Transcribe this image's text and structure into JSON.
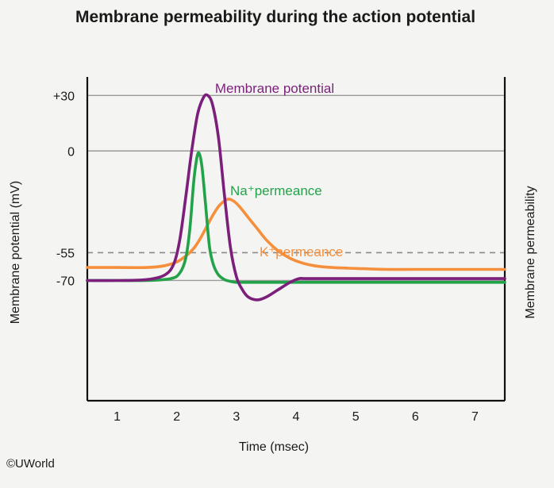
{
  "chart_data": {
    "type": "line",
    "title": "Membrane permeability during the action potential",
    "xlabel": "Time (msec)",
    "ylabel": "Membrane potential (mV)",
    "y2label": "Membrane permeability",
    "xlim": [
      0.5,
      7.5
    ],
    "ylim": [
      -135,
      40
    ],
    "xticks": [
      {
        "value": 1,
        "label": "1"
      },
      {
        "value": 2,
        "label": "2"
      },
      {
        "value": 3,
        "label": "3"
      },
      {
        "value": 4,
        "label": "4"
      },
      {
        "value": 5,
        "label": "5"
      },
      {
        "value": 6,
        "label": "6"
      },
      {
        "value": 7,
        "label": "7"
      }
    ],
    "yticks": [
      {
        "value": 30,
        "label": "+30"
      },
      {
        "value": 0,
        "label": "0"
      },
      {
        "value": -55,
        "label": "-55"
      },
      {
        "value": -70,
        "label": "-70"
      }
    ],
    "threshold": -55,
    "grid": "horizontal lines at tick values; dashed at threshold",
    "series": [
      {
        "name": "Membrane potential",
        "color": "#7b1f7b",
        "x": [
          0.5,
          1.0,
          1.5,
          1.8,
          1.95,
          2.05,
          2.15,
          2.25,
          2.35,
          2.45,
          2.52,
          2.6,
          2.7,
          2.8,
          2.9,
          3.0,
          3.1,
          3.2,
          3.35,
          3.5,
          3.7,
          3.9,
          4.05,
          4.2,
          5.0,
          6.0,
          7.0,
          7.5
        ],
        "y": [
          -70,
          -70,
          -69.5,
          -67,
          -61,
          -48,
          -25,
          0,
          20,
          29,
          30,
          25,
          7,
          -24,
          -52,
          -68,
          -75,
          -79,
          -80.5,
          -79,
          -75,
          -71,
          -69,
          -69,
          -69,
          -69,
          -69,
          -69
        ]
      },
      {
        "name": "Na⁺permeance",
        "color": "#22a34a",
        "x": [
          0.5,
          1.0,
          1.5,
          1.9,
          2.05,
          2.15,
          2.22,
          2.28,
          2.33,
          2.37,
          2.42,
          2.48,
          2.55,
          2.62,
          2.7,
          2.8,
          2.9,
          3.0,
          3.2,
          3.5,
          4.0,
          5.0,
          6.0,
          7.0,
          7.5
        ],
        "y": [
          -70,
          -70,
          -70,
          -69,
          -66,
          -58,
          -42,
          -18,
          -5,
          -1,
          -8,
          -28,
          -52,
          -62,
          -67,
          -69.5,
          -70.5,
          -71,
          -71,
          -71,
          -71,
          -71,
          -71,
          -71,
          -71
        ]
      },
      {
        "name": "K⁺permeance",
        "color": "#f58f3c",
        "x": [
          0.5,
          1.0,
          1.5,
          1.8,
          2.0,
          2.1,
          2.2,
          2.3,
          2.4,
          2.5,
          2.6,
          2.7,
          2.8,
          2.87,
          2.95,
          3.05,
          3.2,
          3.35,
          3.5,
          3.7,
          3.9,
          4.1,
          4.3,
          4.6,
          5.0,
          5.5,
          6.0,
          7.0,
          7.5
        ],
        "y": [
          -63,
          -63,
          -63,
          -62,
          -60,
          -58,
          -55.5,
          -52,
          -47,
          -41,
          -35,
          -30,
          -27,
          -26,
          -27,
          -30,
          -36,
          -42,
          -48,
          -54,
          -58,
          -60.5,
          -62,
          -63,
          -63.5,
          -64,
          -64,
          -64,
          -64
        ]
      }
    ]
  },
  "labels": {
    "membrane_potential": "Membrane potential",
    "na_permeance": "Na⁺permeance",
    "k_permeance": "K⁺permeance"
  },
  "credit": "©UWorld"
}
